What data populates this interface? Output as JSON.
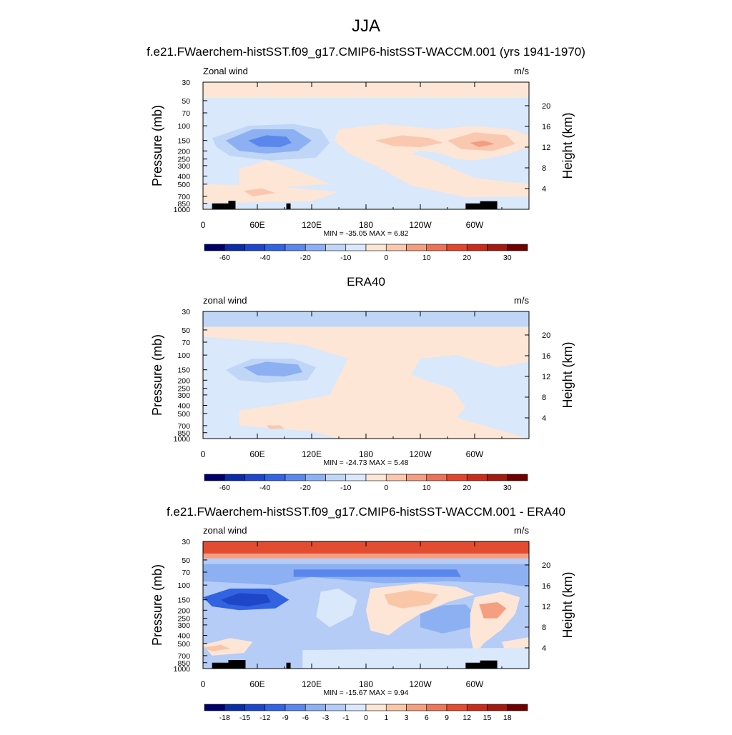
{
  "figure": {
    "title": "JJA"
  },
  "colors": {
    "model_scale": [
      "#000068",
      "#0a2ca4",
      "#1e46c8",
      "#3263e0",
      "#5a87ec",
      "#8cb0f2",
      "#c0d6f7",
      "#d9e8fb",
      "#fde6d6",
      "#f9c8ae",
      "#f29e82",
      "#ea7357",
      "#e0462e",
      "#c82d1c",
      "#a21a12",
      "#6e0000"
    ],
    "diff_scale": [
      "#000068",
      "#0a2ca4",
      "#1e46c8",
      "#3263e0",
      "#5a87ec",
      "#8cb0f2",
      "#b4ccf6",
      "#d9e8fb",
      "#fde6d6",
      "#fac6a8",
      "#f49f80",
      "#ec7656",
      "#e24c30",
      "#c82d1c",
      "#a21a12",
      "#6e0000"
    ]
  },
  "chart_data": [
    {
      "type": "heatmap",
      "title": "f.e21.FWaerchem-histSST.f09_g17.CMIP6-histSST-WACCM.001 (yrs 1941-1970)",
      "left_label": "Zonal wind",
      "right_label": "m/s",
      "ylabel": "Pressure (mb)",
      "y2label": "Height (km)",
      "x_ticks": [
        "0",
        "60E",
        "120E",
        "180",
        "120W",
        "60W"
      ],
      "y_ticks": [
        "30",
        "50",
        "70",
        "100",
        "150",
        "200",
        "250",
        "300",
        "400",
        "500",
        "700",
        "850",
        "1000"
      ],
      "y2_ticks": [
        "20",
        "16",
        "12",
        "8",
        "4"
      ],
      "stats": "MIN = -35.05  MAX =   6.82",
      "colorbar_labels": [
        "-60",
        "-40",
        "-20",
        "-10",
        "0",
        "10",
        "20",
        "30"
      ],
      "min": -35.05,
      "max": 6.82,
      "scale": "log-pressure"
    },
    {
      "type": "heatmap",
      "title": "ERA40",
      "left_label": "zonal wind",
      "right_label": "m/s",
      "ylabel": "Pressure (mb)",
      "y2label": "Height (km)",
      "x_ticks": [
        "0",
        "60E",
        "120E",
        "180",
        "120W",
        "60W"
      ],
      "y_ticks": [
        "30",
        "50",
        "70",
        "100",
        "150",
        "200",
        "250",
        "300",
        "400",
        "500",
        "700",
        "850",
        "1000"
      ],
      "y2_ticks": [
        "20",
        "16",
        "12",
        "8",
        "4"
      ],
      "stats": "MIN = -24.73  MAX =   5.48",
      "colorbar_labels": [
        "-60",
        "-40",
        "-20",
        "-10",
        "0",
        "10",
        "20",
        "30"
      ],
      "min": -24.73,
      "max": 5.48,
      "scale": "log-pressure"
    },
    {
      "type": "heatmap",
      "title": "f.e21.FWaerchem-histSST.f09_g17.CMIP6-histSST-WACCM.001 - ERA40",
      "left_label": "zonal wind",
      "right_label": "m/s",
      "ylabel": "Pressure (mb)",
      "y2label": "Height (km)",
      "x_ticks": [
        "0",
        "60E",
        "120E",
        "180",
        "120W",
        "60W"
      ],
      "y_ticks": [
        "30",
        "50",
        "70",
        "100",
        "150",
        "200",
        "250",
        "300",
        "400",
        "500",
        "700",
        "850",
        "1000"
      ],
      "y2_ticks": [
        "20",
        "16",
        "12",
        "8",
        "4"
      ],
      "stats": "MIN = -15.67  MAX =   9.94",
      "colorbar_labels": [
        "-18",
        "-15",
        "-12",
        "-9",
        "-6",
        "-3",
        "-1",
        "0",
        "1",
        "3",
        "6",
        "9",
        "12",
        "15",
        "18"
      ],
      "min": -15.67,
      "max": 9.94,
      "scale": "log-pressure"
    }
  ]
}
